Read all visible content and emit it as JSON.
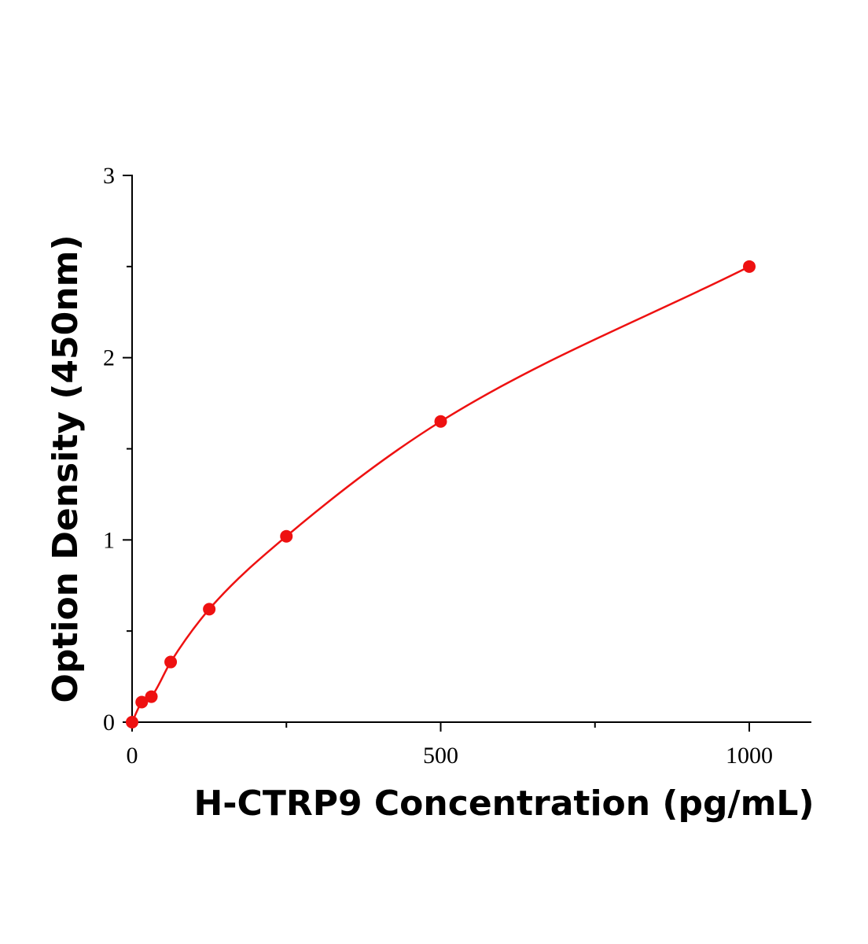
{
  "chart_data": {
    "type": "scatter",
    "xlabel": "H-CTRP9 Concentration (pg/mL)",
    "ylabel": "Option Density (450nm)",
    "xlim": [
      0,
      1100
    ],
    "ylim": [
      0,
      3
    ],
    "x_ticks": [
      0,
      500,
      1000
    ],
    "x_minor_ticks": [
      250,
      750
    ],
    "y_ticks": [
      0,
      1,
      2,
      3
    ],
    "y_minor_ticks": [
      0.5,
      1.5,
      2.5
    ],
    "grid": false,
    "legend": "none",
    "color": "#ee1111",
    "series": [
      {
        "x": [
          0,
          15.6,
          31.25,
          62.5,
          125,
          250,
          500,
          1000
        ],
        "y": [
          0.0,
          0.11,
          0.14,
          0.33,
          0.62,
          1.02,
          1.65,
          2.5
        ],
        "fit_line": true
      }
    ]
  }
}
